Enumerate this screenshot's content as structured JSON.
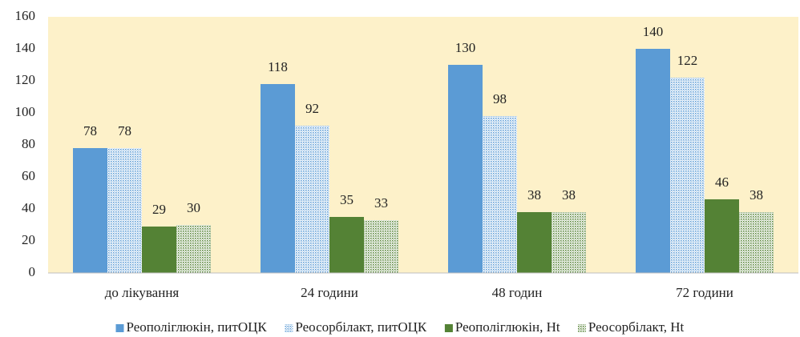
{
  "chart_data": {
    "type": "bar",
    "categories": [
      "до лікування",
      "24 години",
      "48 годин",
      "72 години"
    ],
    "series": [
      {
        "name": "Реополіглюкін, питОЦК",
        "color": "#5b9bd5",
        "values": [
          78,
          118,
          130,
          140
        ]
      },
      {
        "name": "Реосорбілакт, питОЦК",
        "color": "#5b9bd5",
        "pattern": "dots",
        "values": [
          78,
          92,
          98,
          122
        ]
      },
      {
        "name": "Реополіглюкін, Ht",
        "color": "#548235",
        "values": [
          29,
          35,
          38,
          46
        ]
      },
      {
        "name": "Реосорбілакт, Ht",
        "color": "#548235",
        "pattern": "dots",
        "values": [
          30,
          33,
          38,
          38
        ]
      }
    ],
    "ylim": [
      0,
      160
    ],
    "yticks": [
      0,
      20,
      40,
      60,
      80,
      100,
      120,
      140,
      160
    ],
    "plot_background": "#fdf1c9",
    "legend": "bottom"
  }
}
